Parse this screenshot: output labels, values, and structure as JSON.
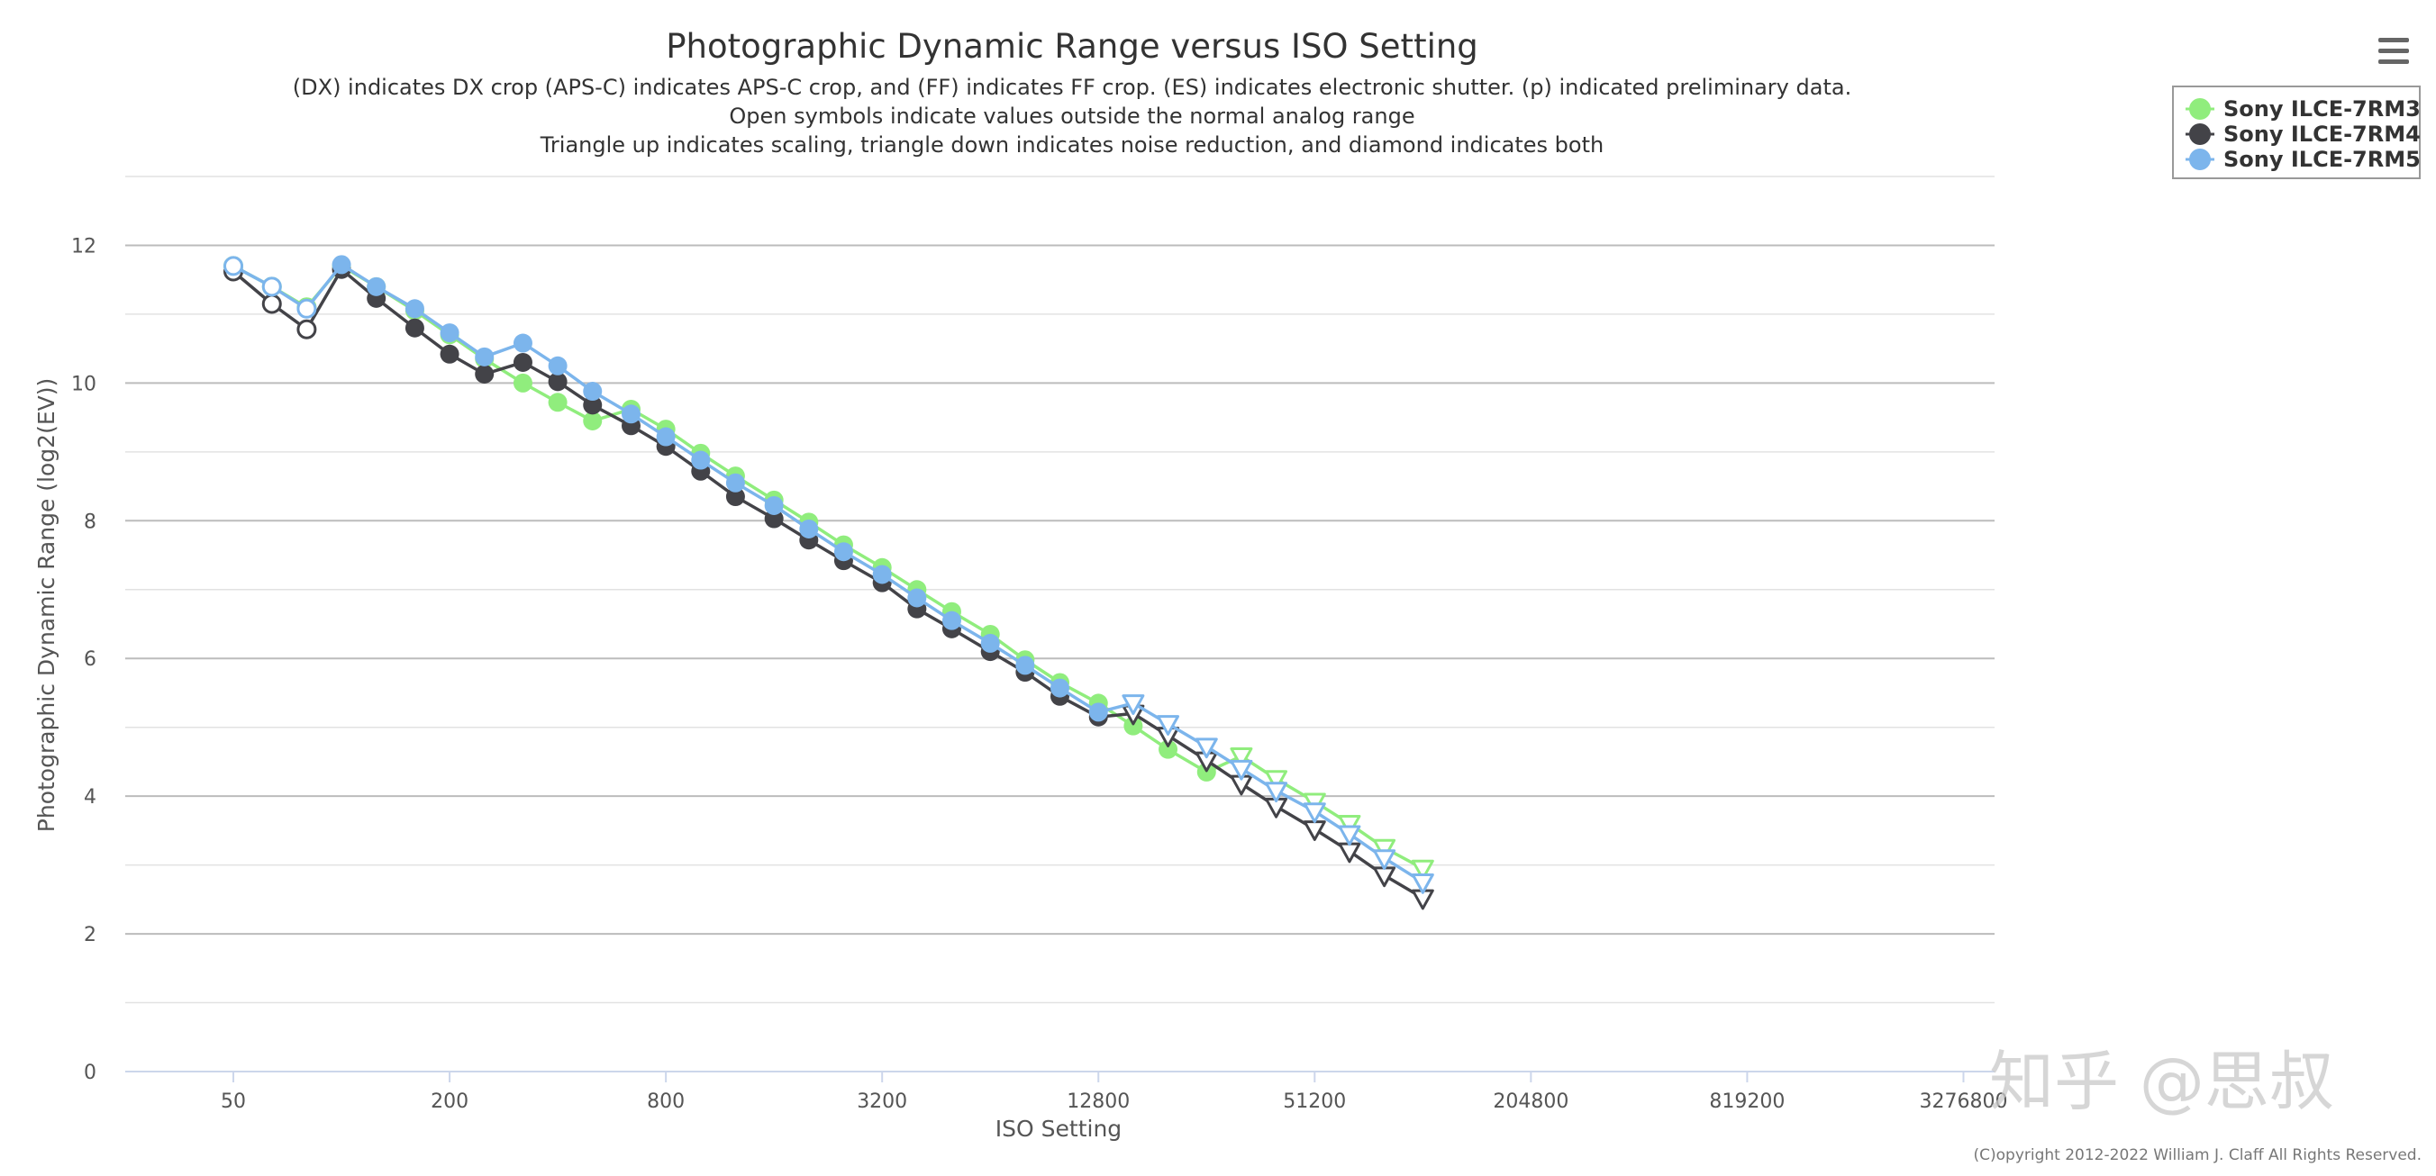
{
  "chart_data": {
    "type": "line",
    "title": "Photographic Dynamic Range versus ISO Setting",
    "subtitle_lines": [
      "(DX) indicates DX crop (APS-C) indicates APS-C crop, and (FF) indicates FF crop. (ES) indicates electronic shutter. (p) indicated preliminary data.",
      "Open symbols indicate values outside the normal analog range",
      "Triangle up indicates scaling, triangle down indicates noise reduction, and diamond indicates both"
    ],
    "xlabel": "ISO Setting",
    "ylabel": "Photographic Dynamic Range (log2(EV))",
    "x_scale": "log2",
    "xlim": [
      25,
      4000000
    ],
    "ylim": [
      0,
      13
    ],
    "x_ticks": [
      50,
      200,
      800,
      3200,
      12800,
      51200,
      204800,
      819200,
      3276800
    ],
    "x_tick_labels": [
      "50",
      "200",
      "800",
      "3200",
      "12800",
      "51200",
      "204800",
      "819200",
      "3276800"
    ],
    "y_ticks": [
      0,
      2,
      4,
      6,
      8,
      10,
      12
    ],
    "y_tick_labels": [
      "0",
      "2",
      "4",
      "6",
      "8",
      "10",
      "12"
    ],
    "grid": true,
    "legend_position": "top-right",
    "series": [
      {
        "name": "Sony ILCE-7RM3",
        "color": "#90ed7d",
        "points": [
          {
            "iso": 50,
            "dr": 11.7,
            "marker": "open-circle"
          },
          {
            "iso": 64,
            "dr": 11.4,
            "marker": "open-circle"
          },
          {
            "iso": 80,
            "dr": 11.1,
            "marker": "open-circle"
          },
          {
            "iso": 100,
            "dr": 11.7,
            "marker": "circle"
          },
          {
            "iso": 125,
            "dr": 11.4,
            "marker": "circle"
          },
          {
            "iso": 160,
            "dr": 11.05,
            "marker": "circle"
          },
          {
            "iso": 200,
            "dr": 10.7,
            "marker": "circle"
          },
          {
            "iso": 250,
            "dr": 10.35,
            "marker": "circle"
          },
          {
            "iso": 320,
            "dr": 10.0,
            "marker": "circle"
          },
          {
            "iso": 400,
            "dr": 9.72,
            "marker": "circle"
          },
          {
            "iso": 500,
            "dr": 9.45,
            "marker": "circle"
          },
          {
            "iso": 640,
            "dr": 9.62,
            "marker": "circle"
          },
          {
            "iso": 800,
            "dr": 9.33,
            "marker": "circle"
          },
          {
            "iso": 1000,
            "dr": 8.98,
            "marker": "circle"
          },
          {
            "iso": 1250,
            "dr": 8.65,
            "marker": "circle"
          },
          {
            "iso": 1600,
            "dr": 8.3,
            "marker": "circle"
          },
          {
            "iso": 2000,
            "dr": 7.98,
            "marker": "circle"
          },
          {
            "iso": 2500,
            "dr": 7.65,
            "marker": "circle"
          },
          {
            "iso": 3200,
            "dr": 7.32,
            "marker": "circle"
          },
          {
            "iso": 4000,
            "dr": 7.0,
            "marker": "circle"
          },
          {
            "iso": 5000,
            "dr": 6.68,
            "marker": "circle"
          },
          {
            "iso": 6400,
            "dr": 6.35,
            "marker": "circle"
          },
          {
            "iso": 8000,
            "dr": 5.98,
            "marker": "circle"
          },
          {
            "iso": 10000,
            "dr": 5.65,
            "marker": "circle"
          },
          {
            "iso": 12800,
            "dr": 5.35,
            "marker": "circle"
          },
          {
            "iso": 16000,
            "dr": 5.02,
            "marker": "circle"
          },
          {
            "iso": 20000,
            "dr": 4.68,
            "marker": "circle"
          },
          {
            "iso": 25600,
            "dr": 4.35,
            "marker": "circle"
          },
          {
            "iso": 32000,
            "dr": 4.58,
            "marker": "open-triangle-down"
          },
          {
            "iso": 40000,
            "dr": 4.25,
            "marker": "open-triangle-down"
          },
          {
            "iso": 51200,
            "dr": 3.92,
            "marker": "open-triangle-down"
          },
          {
            "iso": 64000,
            "dr": 3.6,
            "marker": "open-triangle-down"
          },
          {
            "iso": 80000,
            "dr": 3.25,
            "marker": "open-triangle-down"
          },
          {
            "iso": 102400,
            "dr": 2.95,
            "marker": "open-triangle-down"
          }
        ]
      },
      {
        "name": "Sony ILCE-7RM4",
        "color": "#434348",
        "points": [
          {
            "iso": 50,
            "dr": 11.62,
            "marker": "open-circle"
          },
          {
            "iso": 64,
            "dr": 11.15,
            "marker": "open-circle"
          },
          {
            "iso": 80,
            "dr": 10.78,
            "marker": "open-circle"
          },
          {
            "iso": 100,
            "dr": 11.65,
            "marker": "circle"
          },
          {
            "iso": 125,
            "dr": 11.23,
            "marker": "circle"
          },
          {
            "iso": 160,
            "dr": 10.8,
            "marker": "circle"
          },
          {
            "iso": 200,
            "dr": 10.42,
            "marker": "circle"
          },
          {
            "iso": 250,
            "dr": 10.13,
            "marker": "circle"
          },
          {
            "iso": 320,
            "dr": 10.3,
            "marker": "circle"
          },
          {
            "iso": 400,
            "dr": 10.02,
            "marker": "circle"
          },
          {
            "iso": 500,
            "dr": 9.68,
            "marker": "circle"
          },
          {
            "iso": 640,
            "dr": 9.38,
            "marker": "circle"
          },
          {
            "iso": 800,
            "dr": 9.08,
            "marker": "circle"
          },
          {
            "iso": 1000,
            "dr": 8.72,
            "marker": "circle"
          },
          {
            "iso": 1250,
            "dr": 8.35,
            "marker": "circle"
          },
          {
            "iso": 1600,
            "dr": 8.03,
            "marker": "circle"
          },
          {
            "iso": 2000,
            "dr": 7.72,
            "marker": "circle"
          },
          {
            "iso": 2500,
            "dr": 7.42,
            "marker": "circle"
          },
          {
            "iso": 3200,
            "dr": 7.1,
            "marker": "circle"
          },
          {
            "iso": 4000,
            "dr": 6.72,
            "marker": "circle"
          },
          {
            "iso": 5000,
            "dr": 6.43,
            "marker": "circle"
          },
          {
            "iso": 6400,
            "dr": 6.1,
            "marker": "circle"
          },
          {
            "iso": 8000,
            "dr": 5.8,
            "marker": "circle"
          },
          {
            "iso": 10000,
            "dr": 5.45,
            "marker": "circle"
          },
          {
            "iso": 12800,
            "dr": 5.15,
            "marker": "circle"
          },
          {
            "iso": 16000,
            "dr": 5.2,
            "marker": "open-triangle-down"
          },
          {
            "iso": 20000,
            "dr": 4.88,
            "marker": "open-triangle-down"
          },
          {
            "iso": 25600,
            "dr": 4.52,
            "marker": "open-triangle-down"
          },
          {
            "iso": 32000,
            "dr": 4.18,
            "marker": "open-triangle-down"
          },
          {
            "iso": 40000,
            "dr": 3.85,
            "marker": "open-triangle-down"
          },
          {
            "iso": 51200,
            "dr": 3.52,
            "marker": "open-triangle-down"
          },
          {
            "iso": 64000,
            "dr": 3.2,
            "marker": "open-triangle-down"
          },
          {
            "iso": 80000,
            "dr": 2.85,
            "marker": "open-triangle-down"
          },
          {
            "iso": 102400,
            "dr": 2.52,
            "marker": "open-triangle-down"
          }
        ]
      },
      {
        "name": "Sony ILCE-7RM5",
        "color": "#7cb5ec",
        "points": [
          {
            "iso": 50,
            "dr": 11.7,
            "marker": "open-circle"
          },
          {
            "iso": 64,
            "dr": 11.4,
            "marker": "open-circle"
          },
          {
            "iso": 80,
            "dr": 11.08,
            "marker": "open-circle"
          },
          {
            "iso": 100,
            "dr": 11.72,
            "marker": "circle"
          },
          {
            "iso": 125,
            "dr": 11.4,
            "marker": "circle"
          },
          {
            "iso": 160,
            "dr": 11.08,
            "marker": "circle"
          },
          {
            "iso": 200,
            "dr": 10.73,
            "marker": "circle"
          },
          {
            "iso": 250,
            "dr": 10.38,
            "marker": "circle"
          },
          {
            "iso": 320,
            "dr": 10.58,
            "marker": "circle"
          },
          {
            "iso": 400,
            "dr": 10.25,
            "marker": "circle"
          },
          {
            "iso": 500,
            "dr": 9.88,
            "marker": "circle"
          },
          {
            "iso": 640,
            "dr": 9.55,
            "marker": "circle"
          },
          {
            "iso": 800,
            "dr": 9.22,
            "marker": "circle"
          },
          {
            "iso": 1000,
            "dr": 8.88,
            "marker": "circle"
          },
          {
            "iso": 1250,
            "dr": 8.55,
            "marker": "circle"
          },
          {
            "iso": 1600,
            "dr": 8.22,
            "marker": "circle"
          },
          {
            "iso": 2000,
            "dr": 7.88,
            "marker": "circle"
          },
          {
            "iso": 2500,
            "dr": 7.55,
            "marker": "circle"
          },
          {
            "iso": 3200,
            "dr": 7.22,
            "marker": "circle"
          },
          {
            "iso": 4000,
            "dr": 6.88,
            "marker": "circle"
          },
          {
            "iso": 5000,
            "dr": 6.55,
            "marker": "circle"
          },
          {
            "iso": 6400,
            "dr": 6.22,
            "marker": "circle"
          },
          {
            "iso": 8000,
            "dr": 5.9,
            "marker": "circle"
          },
          {
            "iso": 10000,
            "dr": 5.57,
            "marker": "circle"
          },
          {
            "iso": 12800,
            "dr": 5.22,
            "marker": "circle"
          },
          {
            "iso": 16000,
            "dr": 5.35,
            "marker": "open-triangle-down"
          },
          {
            "iso": 20000,
            "dr": 5.05,
            "marker": "open-triangle-down"
          },
          {
            "iso": 25600,
            "dr": 4.72,
            "marker": "open-triangle-down"
          },
          {
            "iso": 32000,
            "dr": 4.4,
            "marker": "open-triangle-down"
          },
          {
            "iso": 40000,
            "dr": 4.08,
            "marker": "open-triangle-down"
          },
          {
            "iso": 51200,
            "dr": 3.78,
            "marker": "open-triangle-down"
          },
          {
            "iso": 64000,
            "dr": 3.45,
            "marker": "open-triangle-down"
          },
          {
            "iso": 80000,
            "dr": 3.1,
            "marker": "open-triangle-down"
          },
          {
            "iso": 102400,
            "dr": 2.75,
            "marker": "open-triangle-down"
          }
        ]
      }
    ]
  },
  "credit": "(C)opyright 2012-2022 William J. Claff All Rights Reserved.",
  "watermark": "知乎 @思叔",
  "export_menu": {
    "icon": "hamburger-menu-icon"
  }
}
